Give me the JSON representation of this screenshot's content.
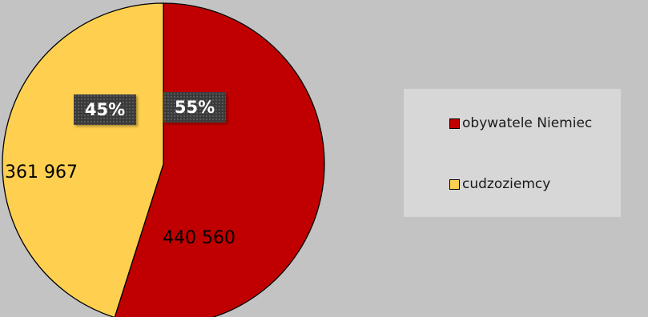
{
  "chart_data": {
    "type": "pie",
    "slices": [
      {
        "name": "obywatele Niemiec",
        "value": 440560,
        "value_label": "440 560",
        "percent_label": "55%",
        "color": "#c00000"
      },
      {
        "name": "cudzoziemcy",
        "value": 361967,
        "value_label": "361 967",
        "percent_label": "45%",
        "color": "#ffd050"
      }
    ],
    "legend_position": "right"
  }
}
